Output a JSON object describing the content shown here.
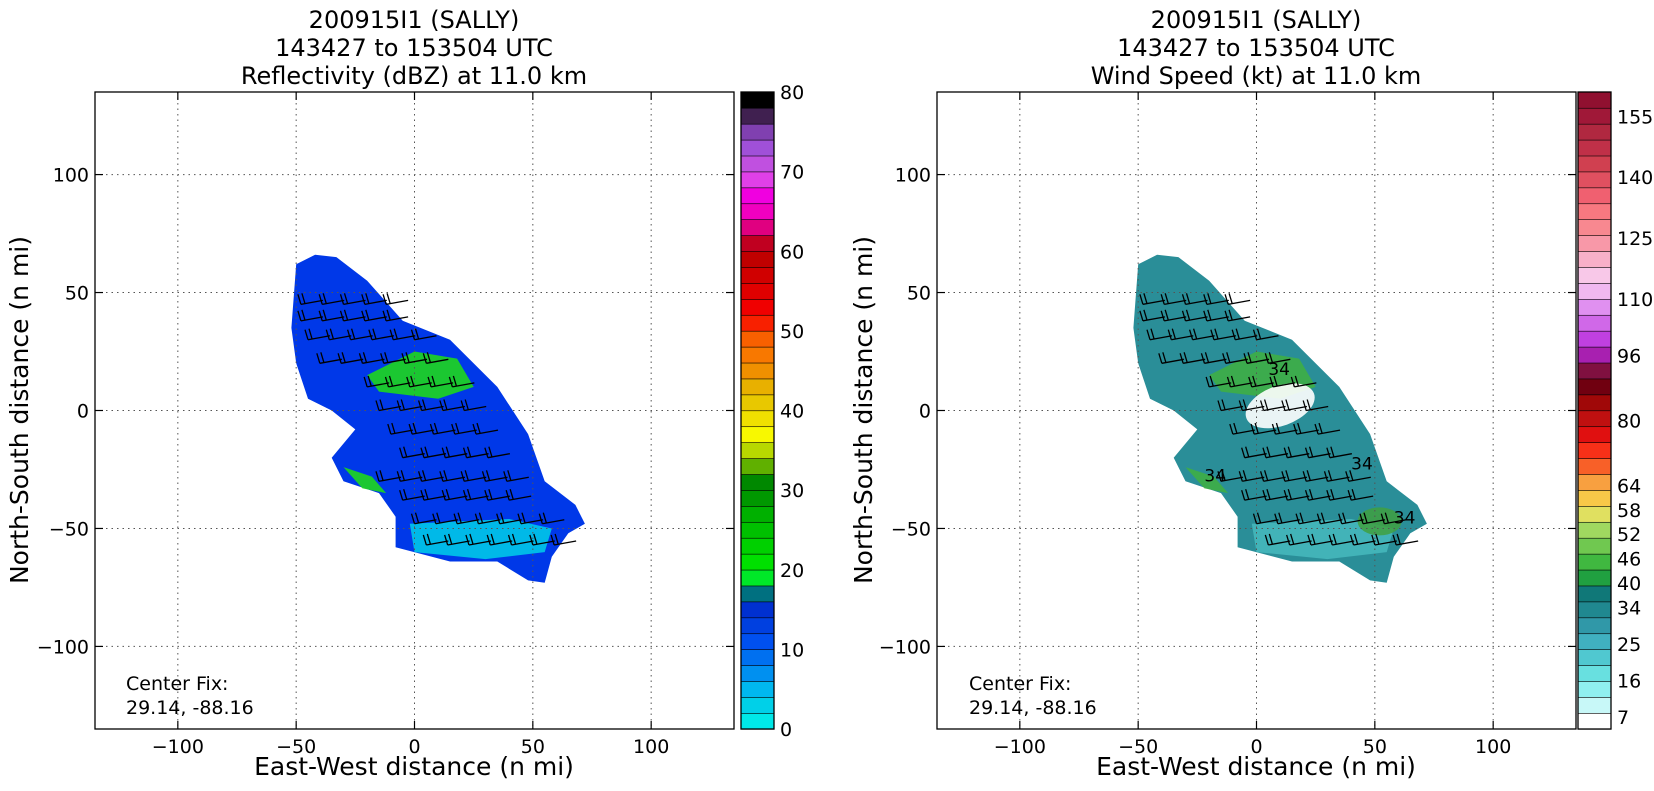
{
  "chart_data": [
    {
      "type": "heatmap",
      "title_lines": [
        "200915I1 (SALLY)",
        "143427 to 153504 UTC",
        "Reflectivity (dBZ) at 11.0 km"
      ],
      "xlabel": "East-West distance (n mi)",
      "ylabel": "North-South distance (n mi)",
      "xlim": [
        -135,
        135
      ],
      "ylim": [
        -135,
        135
      ],
      "xticks": [
        -100,
        -50,
        0,
        50,
        100
      ],
      "yticks": [
        -100,
        -50,
        0,
        50,
        100
      ],
      "xtick_labels": [
        "−100",
        "−50",
        "0",
        "50",
        "100"
      ],
      "ytick_labels": [
        "−100",
        "−50",
        "0",
        "50",
        "100"
      ],
      "grid": true,
      "annotation": {
        "line1": "Center Fix:",
        "line2": "29.14, -88.16"
      },
      "colorbar": {
        "min": 0,
        "max": 80,
        "tick_values": [
          0,
          10,
          20,
          30,
          40,
          50,
          60,
          70,
          80
        ],
        "tick_labels": [
          "0",
          "10",
          "20",
          "30",
          "40",
          "50",
          "60",
          "70",
          "80"
        ],
        "colors": [
          "#00e8e8",
          "#00d0e8",
          "#00b8f0",
          "#0090f0",
          "#0070f0",
          "#0050f0",
          "#0040e0",
          "#0030d0",
          "#007080",
          "#00e828",
          "#00e000",
          "#00d000",
          "#00c000",
          "#00b000",
          "#009800",
          "#008800",
          "#60b000",
          "#b8d800",
          "#f8f800",
          "#f0e000",
          "#e8c800",
          "#e8b000",
          "#f09000",
          "#f87800",
          "#f86000",
          "#f82000",
          "#f00000",
          "#e00000",
          "#d00000",
          "#c00000",
          "#c00020",
          "#e00080",
          "#f000c0",
          "#f000e0",
          "#e040e8",
          "#c050e0",
          "#a050d8",
          "#8040b0",
          "#402050",
          "#000000"
        ]
      },
      "storm": {
        "fill": "#0038e8",
        "inner": "#00c8e8",
        "hot": "#20e010"
      },
      "barb_color": "#000000"
    },
    {
      "type": "heatmap",
      "title_lines": [
        "200915I1 (SALLY)",
        "143427 to 153504 UTC",
        "Wind Speed (kt) at 11.0 km"
      ],
      "xlabel": "East-West distance (n mi)",
      "ylabel": "North-South distance (n mi)",
      "xlim": [
        -135,
        135
      ],
      "ylim": [
        -135,
        135
      ],
      "xticks": [
        -100,
        -50,
        0,
        50,
        100
      ],
      "yticks": [
        -100,
        -50,
        0,
        50,
        100
      ],
      "xtick_labels": [
        "−100",
        "−50",
        "0",
        "50",
        "100"
      ],
      "ytick_labels": [
        "−100",
        "−50",
        "0",
        "50",
        "100"
      ],
      "grid": true,
      "annotation": {
        "line1": "Center Fix:",
        "line2": "29.14, -88.16"
      },
      "contour_labels": [
        "34",
        "34",
        "34",
        "34"
      ],
      "colorbar": {
        "min": 4,
        "max": 161,
        "tick_values": [
          7,
          16,
          25,
          34,
          40,
          46,
          52,
          58,
          64,
          80,
          96,
          110,
          125,
          140,
          155
        ],
        "tick_labels": [
          "7",
          "16",
          "25",
          "34",
          "40",
          "46",
          "52",
          "58",
          "64",
          "80",
          "96",
          "110",
          "125",
          "140",
          "155"
        ],
        "colors": [
          "#ffffff",
          "#c8f8f8",
          "#90f0f0",
          "#68e0e0",
          "#50c8d0",
          "#40b0c0",
          "#3098a8",
          "#208890",
          "#107878",
          "#20a040",
          "#40b840",
          "#70c850",
          "#a0d860",
          "#e0e060",
          "#f8c848",
          "#f8a040",
          "#f86028",
          "#f83018",
          "#e01010",
          "#c01010",
          "#a00808",
          "#700010",
          "#801040",
          "#a820b0",
          "#c040e0",
          "#d068e8",
          "#e090f0",
          "#f0b8f0",
          "#f8c8e8",
          "#f8b0c8",
          "#f898a8",
          "#f88890",
          "#f87880",
          "#f06070",
          "#e05060",
          "#d04050",
          "#c03048",
          "#b02840",
          "#a01838",
          "#901030"
        ]
      },
      "storm": {
        "fill": "#2a8e98",
        "inner": "#60e0e0",
        "hot": "#40b040"
      },
      "barb_color": "#000000"
    }
  ]
}
